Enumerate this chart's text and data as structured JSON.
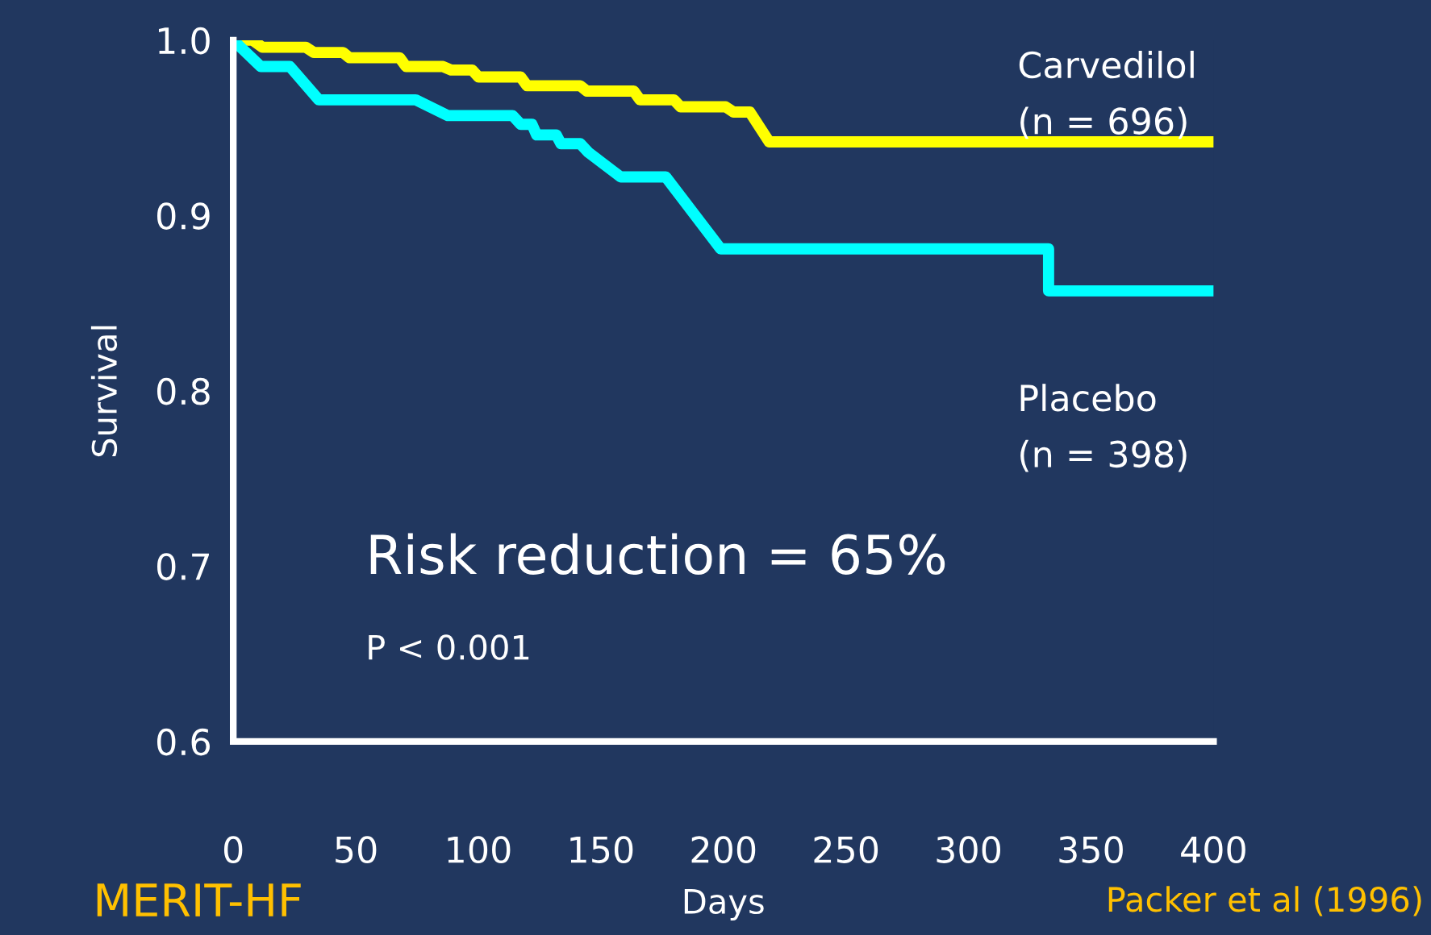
{
  "chart_data": {
    "type": "line",
    "xlabel": "Days",
    "ylabel": "Survival",
    "xlim": [
      0,
      400
    ],
    "xticks": [
      0,
      50,
      100,
      150,
      200,
      250,
      300,
      350,
      400
    ],
    "ylim": [
      0.6,
      1.0
    ],
    "yticks": [
      0.6,
      0.7,
      0.8,
      0.9,
      {
        "value": 1,
        "label": "1.0"
      }
    ],
    "grid": false,
    "legend": false,
    "marker": "none",
    "line_style": "solid",
    "series": [
      {
        "name": "Carvedilol",
        "color": "#ffff00",
        "x": [
          0,
          7.9,
          11.9,
          29.6,
          32.9,
          44.8,
          47.4,
          67.9,
          70.5,
          85.6,
          88.9,
          97.5,
          100.1,
          117.3,
          119.9,
          141.6,
          144.3,
          163.4,
          166,
          179.8,
          182.5,
          200.9,
          204.2,
          210.8,
          218.7,
          400
        ],
        "values": [
          1.0,
          1.0,
          0.996,
          0.996,
          0.993,
          0.993,
          0.99,
          0.99,
          0.985,
          0.985,
          0.983,
          0.983,
          0.979,
          0.979,
          0.974,
          0.974,
          0.971,
          0.971,
          0.966,
          0.966,
          0.962,
          0.962,
          0.959,
          0.959,
          0.942,
          0.942
        ]
      },
      {
        "name": "Placebo",
        "color": "#00ffff",
        "x": [
          0,
          11.2,
          23.1,
          34.9,
          74.4,
          87.6,
          114,
          117.3,
          121.9,
          123.8,
          131.8,
          133.7,
          141.6,
          144.9,
          158.1,
          176.5,
          198.9,
          332.7,
          332.7,
          400
        ],
        "values": [
          1.0,
          0.985,
          0.985,
          0.966,
          0.966,
          0.957,
          0.957,
          0.952,
          0.952,
          0.946,
          0.946,
          0.941,
          0.941,
          0.936,
          0.922,
          0.922,
          0.881,
          0.881,
          0.857,
          0.857
        ]
      }
    ],
    "annotations": [
      "(n = 696)",
      "(n = 398)",
      "Risk reduction = 65%",
      "P < 0.001",
      "Packer et al (1996)",
      "MERIT-HF"
    ]
  }
}
